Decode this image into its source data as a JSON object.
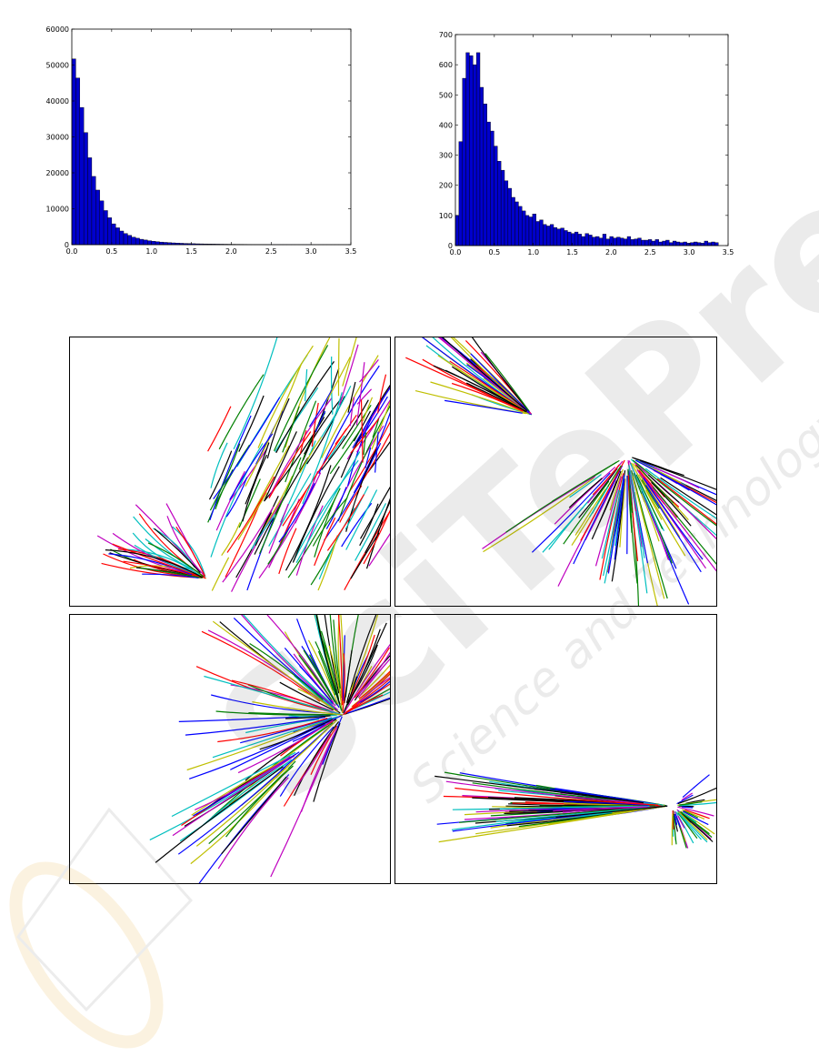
{
  "chart_data": [
    {
      "type": "bar",
      "title": "",
      "xlabel": "",
      "ylabel": "",
      "xlim": [
        0,
        3.5
      ],
      "ylim": [
        0,
        60000
      ],
      "x_ticks": [
        "0.0",
        "0.5",
        "1.0",
        "1.5",
        "2.0",
        "2.5",
        "3.0",
        "3.5"
      ],
      "y_ticks": [
        "0",
        "10000",
        "20000",
        "30000",
        "40000",
        "50000",
        "60000"
      ],
      "bin_width": 0.05,
      "bin_start": 0.0,
      "values": [
        51700,
        46400,
        38200,
        31200,
        24200,
        19000,
        15200,
        12200,
        9500,
        7500,
        5800,
        4700,
        3800,
        3100,
        2600,
        2100,
        1800,
        1500,
        1300,
        1100,
        950,
        820,
        720,
        640,
        560,
        500,
        440,
        390,
        350,
        310,
        280,
        250,
        230,
        210,
        190,
        170,
        155,
        140,
        130,
        120,
        110,
        100,
        92,
        85,
        78,
        72,
        66,
        60,
        55,
        50,
        46,
        42,
        39,
        36,
        33,
        30,
        28,
        26,
        24,
        22,
        20,
        18,
        16,
        15,
        14,
        13,
        12,
        11,
        10,
        9
      ],
      "bar_color": "#0000cc",
      "grid": false
    },
    {
      "type": "bar",
      "title": "",
      "xlabel": "",
      "ylabel": "",
      "xlim": [
        0,
        3.5
      ],
      "ylim": [
        0,
        700
      ],
      "x_ticks": [
        "0.0",
        "0.5",
        "1.0",
        "1.5",
        "2.0",
        "2.5",
        "3.0",
        "3.5"
      ],
      "y_ticks": [
        "0",
        "100",
        "200",
        "300",
        "400",
        "500",
        "600",
        "700"
      ],
      "bin_width": 0.045,
      "bin_start": 0.0,
      "values": [
        100,
        345,
        555,
        640,
        630,
        600,
        640,
        525,
        470,
        410,
        380,
        330,
        280,
        250,
        215,
        190,
        160,
        145,
        130,
        115,
        100,
        95,
        105,
        80,
        85,
        70,
        65,
        70,
        60,
        55,
        58,
        50,
        45,
        40,
        45,
        38,
        30,
        40,
        35,
        28,
        30,
        25,
        38,
        22,
        30,
        25,
        28,
        25,
        22,
        30,
        20,
        22,
        25,
        18,
        18,
        20,
        15,
        20,
        12,
        15,
        18,
        10,
        15,
        12,
        10,
        12,
        8,
        10,
        12,
        10,
        8,
        15,
        10,
        12,
        10
      ]
    }
  ],
  "colors": {
    "bars": "#0000cc",
    "trajectory_palette": [
      "#0000ff",
      "#008000",
      "#ff0000",
      "#00bfbf",
      "#bf00bf",
      "#bfbf00",
      "#000000"
    ]
  },
  "figure_panels": {
    "count": 4,
    "description": [
      "top-left",
      "top-right",
      "bottom-left",
      "bottom-right"
    ]
  },
  "watermark": {
    "text_main": "SciTePress",
    "text_sub": "Science and Technology Publications"
  }
}
